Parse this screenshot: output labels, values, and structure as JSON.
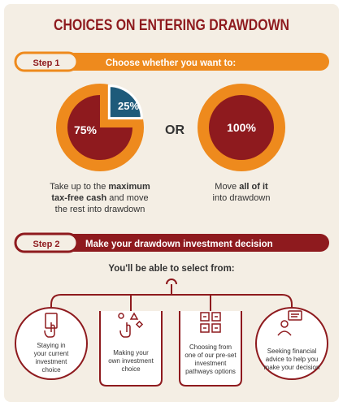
{
  "title": "CHOICES ON ENTERING DRAWDOWN",
  "colors": {
    "maroon": "#8e1a1e",
    "orange": "#ee8a1d",
    "blue": "#1e5a7a",
    "cream": "#f4eee4",
    "white": "#ffffff"
  },
  "step1": {
    "badge": "Step 1",
    "heading": "Choose whether you want to:",
    "option_a": {
      "pie_main_label": "75%",
      "pie_slice_label": "25%",
      "slice_fraction": 0.25,
      "text_line1_pre": "Take up to the ",
      "text_line1_bold": "maximum",
      "text_line2_bold": "tax-free cash",
      "text_line2_post": " and move",
      "text_line3": "the rest into drawdown"
    },
    "or_label": "OR",
    "option_b": {
      "circle_label": "100%",
      "text_line1_pre": "Move ",
      "text_line1_bold": "all of it",
      "text_line2": "into drawdown"
    }
  },
  "step2": {
    "badge": "Step 2",
    "heading": "Make your drawdown investment decision",
    "subheading": "You'll be able to select from:",
    "choices": [
      {
        "icon": "hand-tap-icon",
        "lines": [
          "Staying in",
          "your current",
          "investment",
          "choice"
        ]
      },
      {
        "icon": "hand-shapes-icon",
        "lines": [
          "Making your",
          "own investment",
          "choice"
        ]
      },
      {
        "icon": "grid-arrows-icon",
        "lines": [
          "Choosing from",
          "one of our pre-set",
          "investment",
          "pathways options"
        ]
      },
      {
        "icon": "person-chat-icon",
        "lines": [
          "Seeking financial",
          "advice to help you",
          "make your decision"
        ]
      }
    ]
  }
}
